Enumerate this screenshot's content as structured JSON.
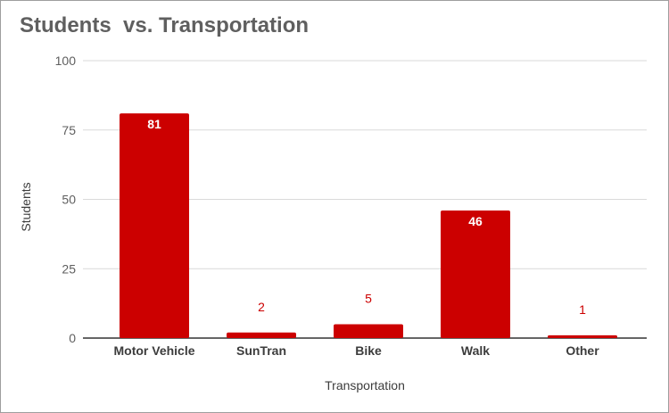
{
  "chart_data": {
    "type": "bar",
    "title": "Students  vs. Transportation",
    "xlabel": "Transportation",
    "ylabel": "Students",
    "categories": [
      "Motor Vehicle",
      "SunTran",
      "Bike",
      "Walk",
      "Other"
    ],
    "values": [
      81,
      2,
      5,
      46,
      1
    ],
    "ylim": [
      0,
      100
    ],
    "yticks": [
      0,
      25,
      50,
      75,
      100
    ],
    "grid": true,
    "legend": "none",
    "colors": {
      "bar": "#cc0000",
      "label_inside": "#ffffff",
      "label_outside": "#cc0000",
      "grid": "#d9d9d9",
      "axis": "#333333"
    }
  }
}
